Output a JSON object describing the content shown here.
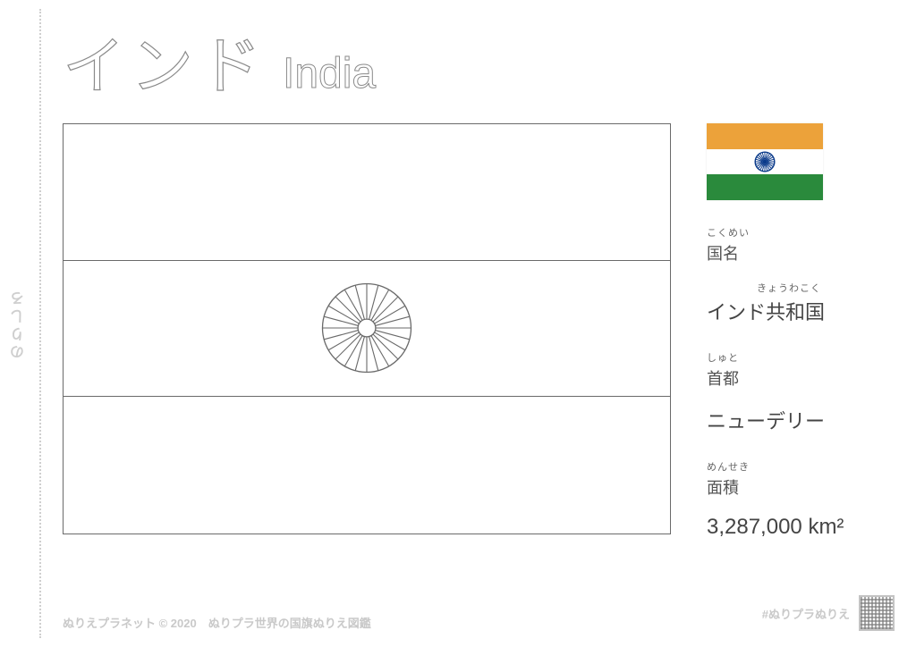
{
  "margin": {
    "label": "のりしろ"
  },
  "title": {
    "jp": "インド",
    "en": "India"
  },
  "flag": {
    "colors": {
      "saffron": "#eca23a",
      "white": "#ffffff",
      "green": "#2a8a3c",
      "chakra": "#0a3a8a"
    },
    "chakra_spokes": 24
  },
  "info": {
    "country_label_ruby": "こくめい",
    "country_label": "国名",
    "country_value_ruby": "きょうわこく",
    "country_value": "インド共和国",
    "capital_label_ruby": "しゅと",
    "capital_label": "首都",
    "capital_value": "ニューデリー",
    "area_label_ruby": "めんせき",
    "area_label": "面積",
    "area_value": "3,287,000 km²"
  },
  "footer": {
    "left": "ぬりえプラネット © 2020　ぬりプラ世界の国旗ぬりえ図鑑",
    "right": "#ぬりプラぬりえ"
  }
}
